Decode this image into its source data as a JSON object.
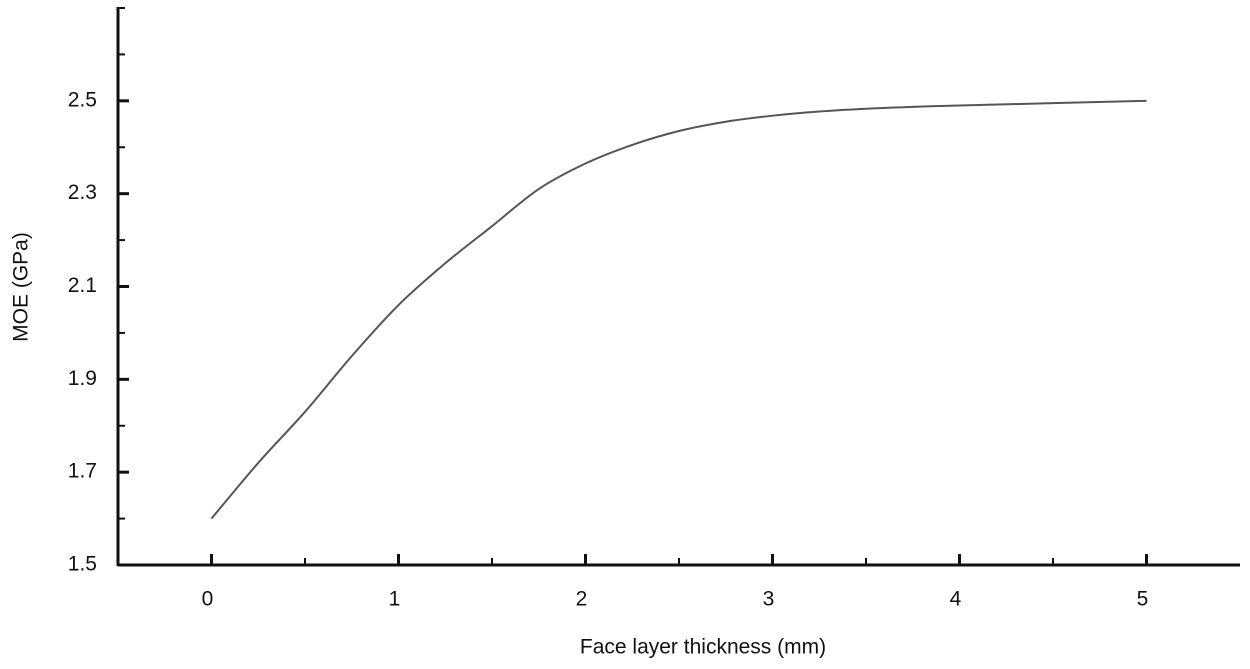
{
  "chart_data": {
    "type": "line",
    "x_label": "Face layer thickness (mm)",
    "y_label": "MOE (GPa)",
    "x": [
      0,
      0.25,
      0.5,
      0.75,
      1,
      1.25,
      1.5,
      1.75,
      2,
      2.25,
      2.5,
      2.75,
      3,
      3.25,
      3.5,
      3.75,
      4,
      4.5,
      5
    ],
    "values": [
      1.6,
      1.72,
      1.83,
      1.95,
      2.06,
      2.15,
      2.23,
      2.31,
      2.365,
      2.405,
      2.435,
      2.455,
      2.468,
      2.477,
      2.483,
      2.487,
      2.49,
      2.495,
      2.5
    ],
    "color": "#555555",
    "xlim": [
      -0.5,
      5.5
    ],
    "xticks": [
      0,
      1,
      2,
      3,
      4,
      5
    ],
    "xminorticks": [
      0.5,
      1.5,
      2.5,
      3.5,
      4.5
    ],
    "ylim": [
      1.5,
      2.7
    ],
    "yticks": [
      1.5,
      1.7,
      1.9,
      2.1,
      2.3,
      2.5
    ],
    "yminorticks": [
      1.6,
      1.8,
      2.0,
      2.2,
      2.4,
      2.6,
      2.7
    ],
    "grid": false
  }
}
